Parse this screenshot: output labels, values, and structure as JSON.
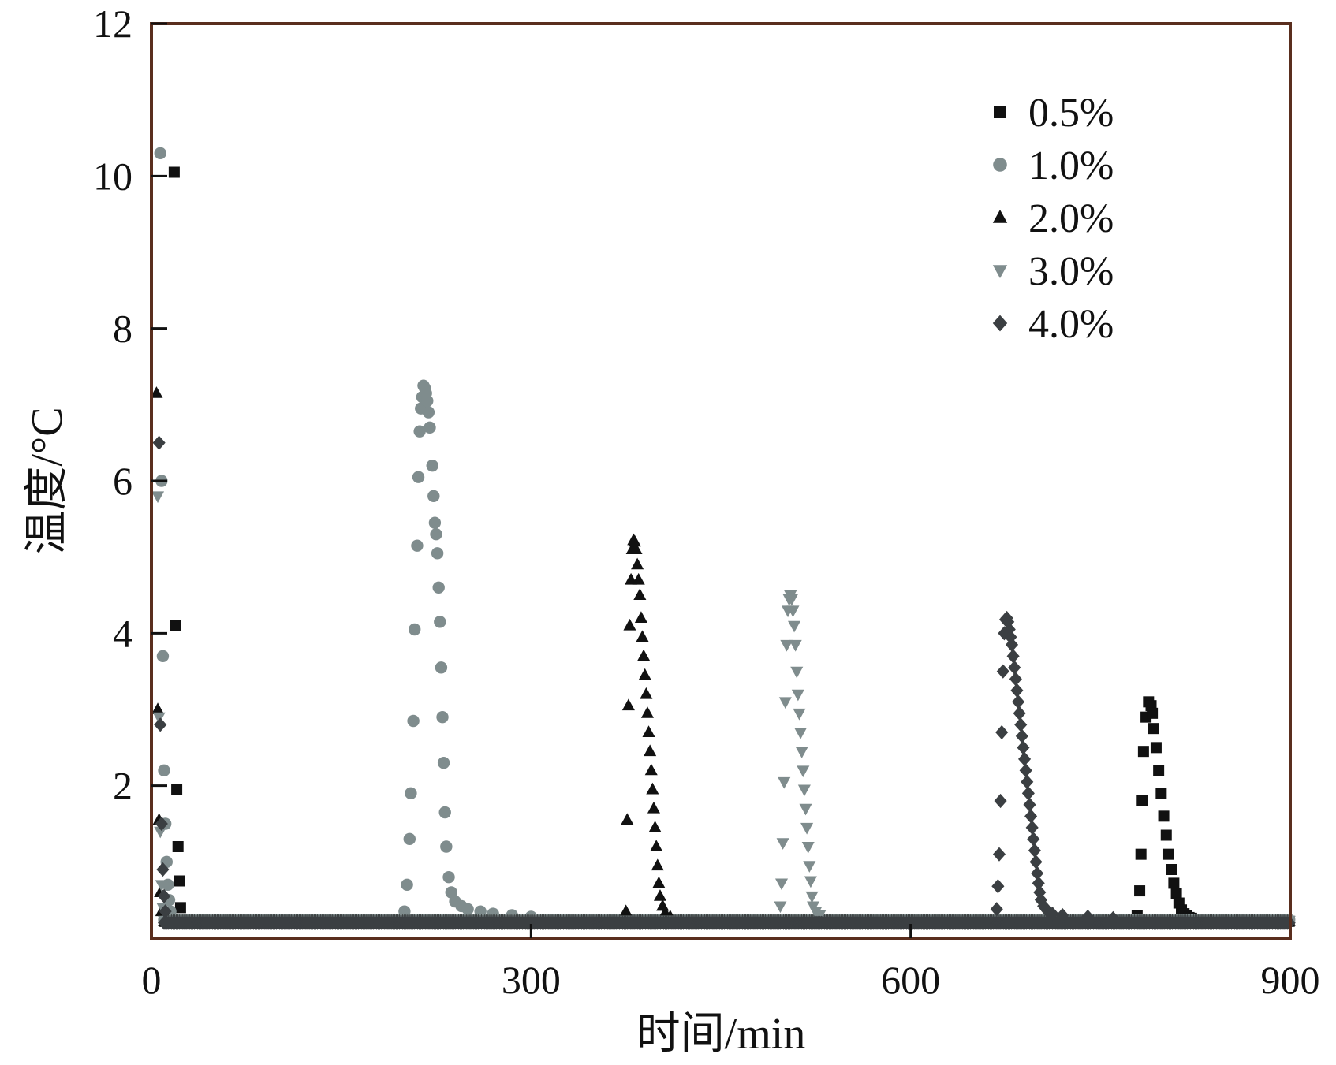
{
  "chart_data": {
    "type": "scatter",
    "title": "",
    "xlabel": "时间/min",
    "ylabel": "温度/°C",
    "xlim": [
      0,
      900
    ],
    "ylim": [
      0,
      12
    ],
    "x_ticks": [
      0,
      300,
      600,
      900
    ],
    "y_ticks": [
      2,
      4,
      6,
      8,
      10,
      12
    ],
    "y_tick_labels_shown": [
      "2",
      "4",
      "6",
      "8",
      "10",
      "12"
    ],
    "grid": false,
    "legend_position": "top-right",
    "series": [
      {
        "name": "0.5%",
        "marker": "square",
        "color": "#111111",
        "baseline": {
          "start": 10,
          "end": 900,
          "value": 0.22
        },
        "points": [
          [
            18,
            10.05
          ],
          [
            19,
            4.1
          ],
          [
            20,
            1.95
          ],
          [
            21,
            1.2
          ],
          [
            22,
            0.75
          ],
          [
            23,
            0.4
          ],
          [
            779,
            0.3
          ],
          [
            781,
            0.62
          ],
          [
            782,
            1.1
          ],
          [
            783,
            1.8
          ],
          [
            784,
            2.45
          ],
          [
            786,
            2.9
          ],
          [
            788,
            3.1
          ],
          [
            790,
            3.05
          ],
          [
            791,
            2.95
          ],
          [
            792,
            2.75
          ],
          [
            794,
            2.5
          ],
          [
            796,
            2.2
          ],
          [
            798,
            1.9
          ],
          [
            800,
            1.6
          ],
          [
            802,
            1.35
          ],
          [
            804,
            1.1
          ],
          [
            806,
            0.9
          ],
          [
            808,
            0.72
          ],
          [
            810,
            0.58
          ],
          [
            812,
            0.46
          ],
          [
            814,
            0.37
          ],
          [
            816,
            0.32
          ],
          [
            818,
            0.29
          ],
          [
            820,
            0.27
          ],
          [
            822,
            0.26
          ]
        ]
      },
      {
        "name": "1.0%",
        "marker": "circle",
        "color": "#7f8c8d",
        "baseline": {
          "start": 10,
          "end": 900,
          "value": 0.24
        },
        "points": [
          [
            7,
            10.3
          ],
          [
            8,
            6.0
          ],
          [
            9,
            3.7
          ],
          [
            10,
            2.2
          ],
          [
            11,
            1.5
          ],
          [
            12,
            1.0
          ],
          [
            13,
            0.7
          ],
          [
            14,
            0.5
          ],
          [
            15,
            0.35
          ],
          [
            200,
            0.35
          ],
          [
            202,
            0.7
          ],
          [
            204,
            1.3
          ],
          [
            205,
            1.9
          ],
          [
            207,
            2.85
          ],
          [
            208,
            4.05
          ],
          [
            210,
            5.15
          ],
          [
            211,
            6.05
          ],
          [
            212,
            6.65
          ],
          [
            213,
            6.95
          ],
          [
            214,
            7.1
          ],
          [
            215,
            7.25
          ],
          [
            216,
            7.22
          ],
          [
            217,
            7.15
          ],
          [
            218,
            7.05
          ],
          [
            219,
            6.9
          ],
          [
            220,
            6.7
          ],
          [
            222,
            6.2
          ],
          [
            223,
            5.8
          ],
          [
            224,
            5.45
          ],
          [
            225,
            5.3
          ],
          [
            226,
            5.05
          ],
          [
            227,
            4.6
          ],
          [
            228,
            4.15
          ],
          [
            229,
            3.55
          ],
          [
            230,
            2.9
          ],
          [
            231,
            2.3
          ],
          [
            232,
            1.65
          ],
          [
            233,
            1.2
          ],
          [
            235,
            0.8
          ],
          [
            237,
            0.6
          ],
          [
            240,
            0.48
          ],
          [
            245,
            0.42
          ],
          [
            250,
            0.38
          ],
          [
            260,
            0.35
          ],
          [
            270,
            0.32
          ],
          [
            285,
            0.3
          ],
          [
            300,
            0.28
          ]
        ]
      },
      {
        "name": "2.0%",
        "marker": "triangle-up",
        "color": "#111111",
        "baseline": {
          "start": 10,
          "end": 900,
          "value": 0.22
        },
        "points": [
          [
            4,
            7.15
          ],
          [
            5,
            3.0
          ],
          [
            6,
            1.55
          ],
          [
            7,
            0.6
          ],
          [
            8,
            0.35
          ],
          [
            375,
            0.35
          ],
          [
            376,
            1.55
          ],
          [
            377,
            3.05
          ],
          [
            378,
            4.1
          ],
          [
            379,
            4.7
          ],
          [
            380,
            5.1
          ],
          [
            381,
            5.22
          ],
          [
            382,
            5.2
          ],
          [
            383,
            5.1
          ],
          [
            384,
            4.9
          ],
          [
            385,
            4.7
          ],
          [
            386,
            4.5
          ],
          [
            387,
            4.2
          ],
          [
            388,
            3.95
          ],
          [
            389,
            3.7
          ],
          [
            390,
            3.45
          ],
          [
            391,
            3.2
          ],
          [
            392,
            2.95
          ],
          [
            393,
            2.7
          ],
          [
            394,
            2.45
          ],
          [
            395,
            2.2
          ],
          [
            396,
            1.95
          ],
          [
            397,
            1.7
          ],
          [
            398,
            1.45
          ],
          [
            399,
            1.2
          ],
          [
            400,
            0.95
          ],
          [
            401,
            0.72
          ],
          [
            402,
            0.55
          ],
          [
            404,
            0.42
          ],
          [
            406,
            0.33
          ],
          [
            410,
            0.28
          ]
        ]
      },
      {
        "name": "3.0%",
        "marker": "triangle-down",
        "color": "#7f8c8d",
        "baseline": {
          "start": 10,
          "end": 900,
          "value": 0.23
        },
        "points": [
          [
            5,
            5.8
          ],
          [
            6,
            2.9
          ],
          [
            7,
            1.4
          ],
          [
            8,
            0.7
          ],
          [
            9,
            0.4
          ],
          [
            497,
            0.42
          ],
          [
            498,
            0.72
          ],
          [
            499,
            1.25
          ],
          [
            500,
            2.05
          ],
          [
            501,
            3.1
          ],
          [
            502,
            3.85
          ],
          [
            503,
            4.3
          ],
          [
            504,
            4.45
          ],
          [
            505,
            4.5
          ],
          [
            506,
            4.45
          ],
          [
            507,
            4.3
          ],
          [
            508,
            4.1
          ],
          [
            509,
            3.85
          ],
          [
            510,
            3.5
          ],
          [
            511,
            3.2
          ],
          [
            512,
            2.95
          ],
          [
            513,
            2.7
          ],
          [
            514,
            2.45
          ],
          [
            515,
            2.2
          ],
          [
            516,
            1.95
          ],
          [
            517,
            1.7
          ],
          [
            518,
            1.45
          ],
          [
            519,
            1.2
          ],
          [
            520,
            0.95
          ],
          [
            521,
            0.75
          ],
          [
            522,
            0.55
          ],
          [
            523,
            0.42
          ],
          [
            525,
            0.35
          ],
          [
            528,
            0.3
          ]
        ]
      },
      {
        "name": "4.0%",
        "marker": "diamond",
        "color": "#3b3f42",
        "baseline": {
          "start": 10,
          "end": 900,
          "value": 0.2
        },
        "points": [
          [
            6,
            6.5
          ],
          [
            7,
            2.8
          ],
          [
            8,
            1.5
          ],
          [
            9,
            0.9
          ],
          [
            10,
            0.55
          ],
          [
            11,
            0.35
          ],
          [
            668,
            0.38
          ],
          [
            669,
            0.68
          ],
          [
            670,
            1.1
          ],
          [
            671,
            1.8
          ],
          [
            672,
            2.7
          ],
          [
            673,
            3.5
          ],
          [
            674,
            4.0
          ],
          [
            675,
            4.18
          ],
          [
            676,
            4.2
          ],
          [
            677,
            4.15
          ],
          [
            678,
            4.05
          ],
          [
            679,
            3.95
          ],
          [
            680,
            3.85
          ],
          [
            681,
            3.7
          ],
          [
            682,
            3.55
          ],
          [
            683,
            3.4
          ],
          [
            684,
            3.25
          ],
          [
            685,
            3.1
          ],
          [
            686,
            2.95
          ],
          [
            687,
            2.8
          ],
          [
            688,
            2.65
          ],
          [
            689,
            2.5
          ],
          [
            690,
            2.35
          ],
          [
            691,
            2.2
          ],
          [
            692,
            2.05
          ],
          [
            693,
            1.9
          ],
          [
            694,
            1.75
          ],
          [
            695,
            1.6
          ],
          [
            696,
            1.45
          ],
          [
            697,
            1.3
          ],
          [
            698,
            1.15
          ],
          [
            699,
            1.0
          ],
          [
            700,
            0.85
          ],
          [
            701,
            0.72
          ],
          [
            702,
            0.6
          ],
          [
            703,
            0.5
          ],
          [
            705,
            0.42
          ],
          [
            708,
            0.36
          ],
          [
            712,
            0.32
          ],
          [
            720,
            0.3
          ],
          [
            740,
            0.28
          ],
          [
            760,
            0.26
          ]
        ]
      }
    ]
  }
}
